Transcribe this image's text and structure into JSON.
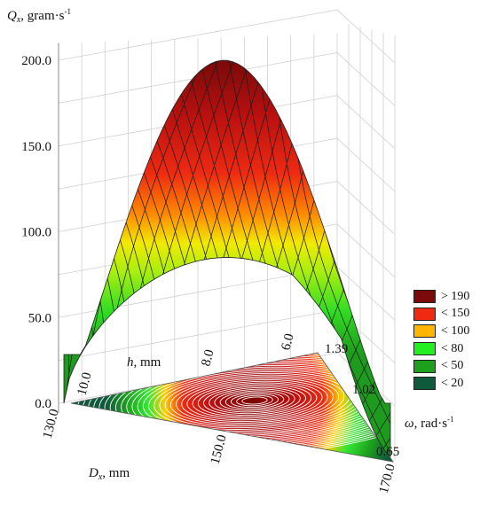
{
  "chart_data": {
    "type": "surface3d",
    "title": "",
    "zlabel": {
      "symbol": "Q",
      "subscript": "x",
      "rest": ", gram·s",
      "sup": "-1"
    },
    "xlabel": {
      "symbol": "D",
      "subscript": "x",
      "rest": ", mm"
    },
    "ylabel_h": {
      "symbol": "h",
      "rest": ", mm"
    },
    "ylabel_w": {
      "symbol": "ω",
      "rest": ", rad·s",
      "sup": "-1"
    },
    "z_ticks": [
      "0.0",
      "50.0",
      "100.0",
      "150.0",
      "200.0"
    ],
    "zlim": [
      0,
      210
    ],
    "dx_ticks": [
      "130.0",
      "150.0",
      "170.0"
    ],
    "h_ticks": [
      "10.0",
      "8.0",
      "6.0"
    ],
    "omega_ticks": [
      "1.39",
      "1.02",
      "0.65"
    ],
    "peak": {
      "Qx": 200
    },
    "surface_edge_values": {
      "rear_edge_Qx": 85,
      "corner_Qx": 0
    },
    "legend": [
      {
        "label": "> 190",
        "color": "#7b0a0a"
      },
      {
        "label": "< 150",
        "color": "#ee2a12"
      },
      {
        "label": "< 100",
        "color": "#ffb400"
      },
      {
        "label": "< 80",
        "color": "#22ee22"
      },
      {
        "label": "< 50",
        "color": "#1ea01e"
      },
      {
        "label": "< 20",
        "color": "#0f5a3c"
      }
    ]
  }
}
